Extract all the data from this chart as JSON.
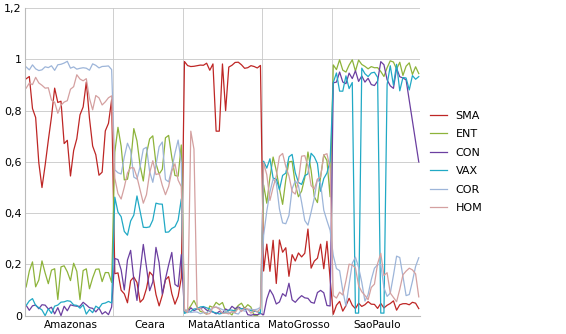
{
  "title": "",
  "ylim": [
    0,
    1.2
  ],
  "yticks": [
    0,
    0.2,
    0.4,
    0.6,
    0.8,
    1.0,
    1.2
  ],
  "groups": [
    "Amazonas",
    "Ceara",
    "MataAtlantica",
    "MatoGrosso",
    "SaoPaulo"
  ],
  "group_sizes": [
    28,
    22,
    25,
    22,
    28
  ],
  "colors": {
    "SMA": "#BE2625",
    "ENT": "#8DB33A",
    "CON": "#6B3FA0",
    "VAX": "#21A9C5",
    "COR": "#9DB5D9",
    "HOM": "#D4A0A0"
  },
  "legend_labels": [
    "SMA",
    "ENT",
    "CON",
    "VAX",
    "COR",
    "HOM"
  ],
  "background_color": "#FFFFFF",
  "grid_color": "#C8C8C8",
  "linewidth": 0.9,
  "figsize": [
    5.66,
    3.34
  ],
  "dpi": 100
}
